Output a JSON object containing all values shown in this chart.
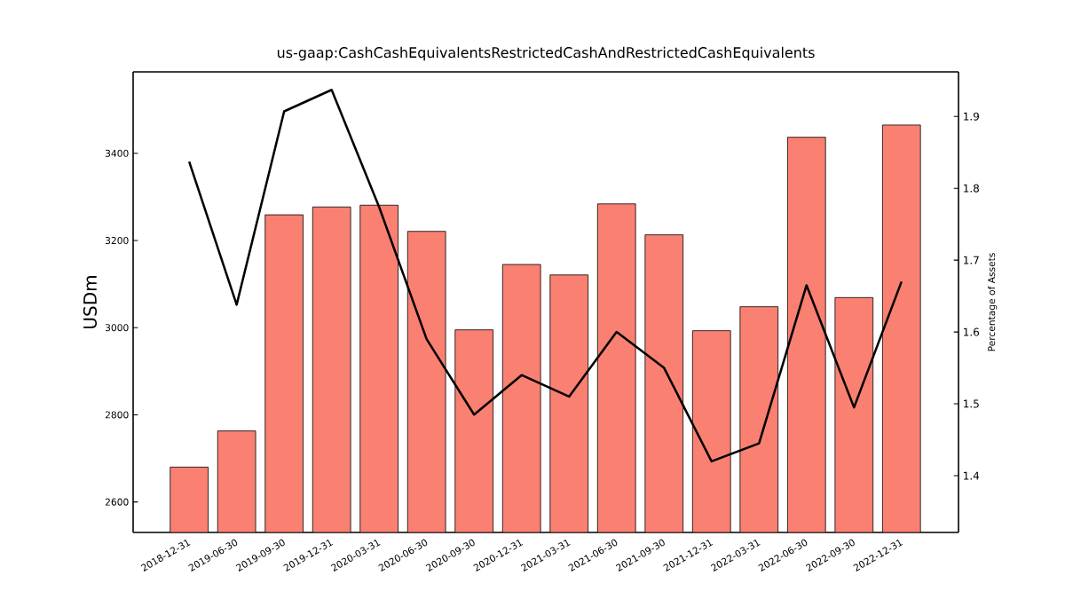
{
  "chart_data": {
    "type": "bar",
    "title": "us-gaap:CashCashEquivalentsRestrictedCashAndRestrictedCashEquivalents",
    "ylabel": "USDm",
    "y2label": "Percentage of Assets",
    "categories": [
      "2018-12-31",
      "2019-06-30",
      "2019-09-30",
      "2019-12-31",
      "2020-03-31",
      "2020-06-30",
      "2020-09-30",
      "2020-12-31",
      "2021-03-31",
      "2021-06-30",
      "2021-09-30",
      "2021-12-31",
      "2022-03-31",
      "2022-06-30",
      "2022-09-30",
      "2022-12-31"
    ],
    "series": [
      {
        "color": "#fa8072",
        "values": [
          2680,
          2763,
          3259,
          3277,
          3281,
          3221,
          2995,
          3145,
          3121,
          3284,
          3213,
          2993,
          3048,
          3437,
          3069,
          3465
        ]
      },
      {
        "type": "line",
        "axis": "y2",
        "color": "#000000",
        "values": [
          1.837,
          1.638,
          1.907,
          1.937,
          1.774,
          1.59,
          1.485,
          1.54,
          1.51,
          1.6,
          1.55,
          1.42,
          1.445,
          1.665,
          1.495,
          1.67
        ]
      }
    ],
    "ylim": [
      2530,
      3587
    ],
    "yticks": [
      2600,
      2800,
      3000,
      3200,
      3400
    ],
    "y2lim": [
      1.321,
      1.962
    ],
    "y2ticks": [
      1.4,
      1.5,
      1.6,
      1.7,
      1.8,
      1.9
    ]
  }
}
